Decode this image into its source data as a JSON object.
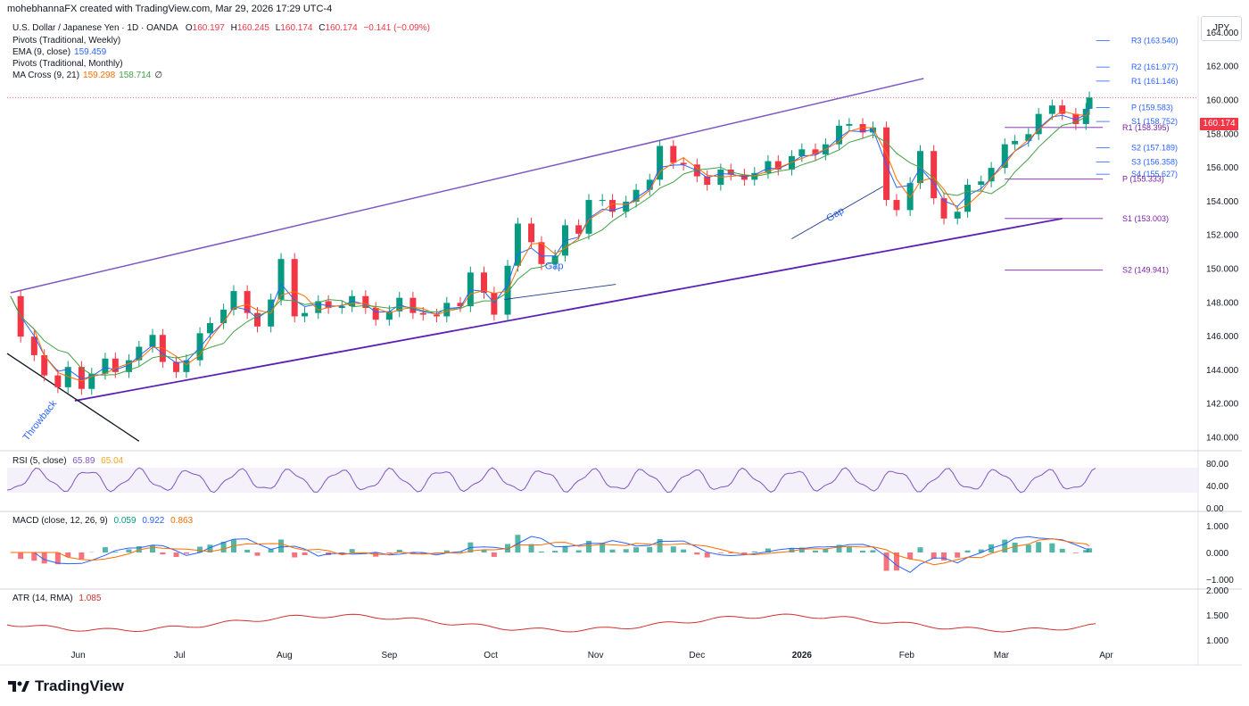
{
  "header": {
    "attribution": "mohebhannaFX created with TradingView.com, Mar 29, 2026 17:29 UTC-4"
  },
  "currency_box": "JPY",
  "legend": {
    "symbol": "U.S. Dollar / Japanese Yen · 1D · OANDA",
    "o_label": "O",
    "o": "160.197",
    "h_label": "H",
    "h": "160.245",
    "l_label": "L",
    "l": "160.174",
    "c_label": "C",
    "c": "160.174",
    "change": "−0.141 (−0.09%)",
    "pivots_weekly": "Pivots (Traditional, Weekly)",
    "ema_label": "EMA (9, close)",
    "ema_value": "159.459",
    "pivots_monthly": "Pivots (Traditional, Monthly)",
    "ma_cross_label": "MA Cross (9, 21)",
    "ma_fast": "159.298",
    "ma_slow": "158.714",
    "ma_extra": "∅"
  },
  "last_price": "160.174",
  "colors": {
    "up": "#089981",
    "down": "#f23645",
    "ema": "#2962ff",
    "ma_fast": "#ff6d00",
    "ma_slow": "#43a047",
    "channel": "#7e57c2",
    "support": "#5b1fb5",
    "weekly_pivot": "#2962ff",
    "monthly_pivot": "#7b1fa2",
    "annotation": "#2962ff",
    "rsi": "#7e57c2",
    "rsi_ma": "#f9a825",
    "macd": "#2962ff",
    "signal": "#ff6d00",
    "atr": "#d32f2f"
  },
  "rsi_pane": {
    "label": "RSI (5, close)",
    "value": "65.89",
    "ma": "65.04",
    "axis": [
      "80.00",
      "40.00",
      "0.00"
    ]
  },
  "macd_pane": {
    "label": "MACD (close, 12, 26, 9)",
    "hist": "0.059",
    "macd": "0.922",
    "signal": "0.863",
    "axis": [
      "1.000",
      "0.000",
      "−1.000"
    ]
  },
  "atr_pane": {
    "label": "ATR (14, RMA)",
    "value": "1.085",
    "axis": [
      "2.000",
      "1.500",
      "1.000"
    ]
  },
  "brand": "TradingView",
  "chart_data": {
    "type": "candlestick",
    "title": "U.S. Dollar / Japanese Yen · 1D · OANDA",
    "ylim": [
      139.5,
      165
    ],
    "yticks": [
      "140.000",
      "142.000",
      "144.000",
      "146.000",
      "148.000",
      "150.000",
      "152.000",
      "154.000",
      "156.000",
      "158.000",
      "160.000",
      "162.000",
      "164.000"
    ],
    "x_axis": {
      "range": [
        "2025-05-11",
        "2026-04-01"
      ],
      "ticks": [
        {
          "date": "2025-06-01",
          "label": "Jun"
        },
        {
          "date": "2025-07-01",
          "label": "Jul"
        },
        {
          "date": "2025-08-01",
          "label": "Aug"
        },
        {
          "date": "2025-09-01",
          "label": "Sep"
        },
        {
          "date": "2025-10-01",
          "label": "Oct"
        },
        {
          "date": "2025-11-01",
          "label": "Nov"
        },
        {
          "date": "2025-12-01",
          "label": "Dec"
        },
        {
          "date": "2026-01-01",
          "label": "2026"
        },
        {
          "date": "2026-02-01",
          "label": "Feb"
        },
        {
          "date": "2026-03-01",
          "label": "Mar"
        },
        {
          "date": "2026-04-01",
          "label": "Apr"
        }
      ]
    },
    "close_series": [
      [
        "2025-05-12",
        148.4
      ],
      [
        "2025-05-15",
        146.0
      ],
      [
        "2025-05-19",
        144.9
      ],
      [
        "2025-05-22",
        143.7
      ],
      [
        "2025-05-26",
        143.0
      ],
      [
        "2025-05-29",
        144.2
      ],
      [
        "2025-06-02",
        142.9
      ],
      [
        "2025-06-05",
        143.8
      ],
      [
        "2025-06-09",
        144.7
      ],
      [
        "2025-06-12",
        143.9
      ],
      [
        "2025-06-16",
        144.6
      ],
      [
        "2025-06-19",
        145.4
      ],
      [
        "2025-06-23",
        146.1
      ],
      [
        "2025-06-26",
        144.5
      ],
      [
        "2025-06-30",
        143.9
      ],
      [
        "2025-07-03",
        144.6
      ],
      [
        "2025-07-07",
        146.2
      ],
      [
        "2025-07-10",
        146.8
      ],
      [
        "2025-07-14",
        147.6
      ],
      [
        "2025-07-17",
        148.7
      ],
      [
        "2025-07-21",
        147.4
      ],
      [
        "2025-07-24",
        146.6
      ],
      [
        "2025-07-28",
        148.2
      ],
      [
        "2025-07-31",
        150.6
      ],
      [
        "2025-08-04",
        147.2
      ],
      [
        "2025-08-07",
        147.4
      ],
      [
        "2025-08-11",
        148.1
      ],
      [
        "2025-08-14",
        147.7
      ],
      [
        "2025-08-18",
        147.8
      ],
      [
        "2025-08-21",
        148.4
      ],
      [
        "2025-08-25",
        147.7
      ],
      [
        "2025-08-28",
        147.0
      ],
      [
        "2025-09-01",
        147.5
      ],
      [
        "2025-09-04",
        148.3
      ],
      [
        "2025-09-08",
        147.4
      ],
      [
        "2025-09-11",
        147.3
      ],
      [
        "2025-09-15",
        147.2
      ],
      [
        "2025-09-18",
        148.0
      ],
      [
        "2025-09-22",
        147.8
      ],
      [
        "2025-09-25",
        149.8
      ],
      [
        "2025-09-29",
        148.6
      ],
      [
        "2025-10-02",
        147.3
      ],
      [
        "2025-10-06",
        150.2
      ],
      [
        "2025-10-09",
        152.7
      ],
      [
        "2025-10-13",
        151.6
      ],
      [
        "2025-10-16",
        150.3
      ],
      [
        "2025-10-20",
        150.8
      ],
      [
        "2025-10-23",
        152.6
      ],
      [
        "2025-10-27",
        152.1
      ],
      [
        "2025-10-30",
        154.1
      ],
      [
        "2025-11-03",
        154.1
      ],
      [
        "2025-11-06",
        153.4
      ],
      [
        "2025-11-10",
        154.0
      ],
      [
        "2025-11-13",
        154.7
      ],
      [
        "2025-11-17",
        155.3
      ],
      [
        "2025-11-20",
        157.3
      ],
      [
        "2025-11-24",
        156.3
      ],
      [
        "2025-11-27",
        156.2
      ],
      [
        "2025-12-01",
        155.5
      ],
      [
        "2025-12-04",
        155.0
      ],
      [
        "2025-12-08",
        155.9
      ],
      [
        "2025-12-11",
        155.6
      ],
      [
        "2025-12-15",
        155.3
      ],
      [
        "2025-12-18",
        155.7
      ],
      [
        "2025-12-22",
        156.4
      ],
      [
        "2025-12-25",
        155.9
      ],
      [
        "2025-12-29",
        156.7
      ],
      [
        "2026-01-01",
        157.1
      ],
      [
        "2026-01-05",
        156.8
      ],
      [
        "2026-01-08",
        157.4
      ],
      [
        "2026-01-12",
        158.5
      ],
      [
        "2026-01-15",
        158.6
      ],
      [
        "2026-01-19",
        158.1
      ],
      [
        "2026-01-22",
        158.4
      ],
      [
        "2026-01-26",
        154.1
      ],
      [
        "2026-01-29",
        153.5
      ],
      [
        "2026-02-02",
        155.1
      ],
      [
        "2026-02-05",
        157.0
      ],
      [
        "2026-02-09",
        154.2
      ],
      [
        "2026-02-12",
        153.0
      ],
      [
        "2026-02-16",
        153.4
      ],
      [
        "2026-02-19",
        155.0
      ],
      [
        "2026-02-23",
        155.2
      ],
      [
        "2026-02-26",
        156.0
      ],
      [
        "2026-03-02",
        157.4
      ],
      [
        "2026-03-05",
        157.6
      ],
      [
        "2026-03-09",
        158.0
      ],
      [
        "2026-03-12",
        159.2
      ],
      [
        "2026-03-16",
        159.7
      ],
      [
        "2026-03-19",
        159.2
      ],
      [
        "2026-03-23",
        158.6
      ],
      [
        "2026-03-26",
        159.5
      ],
      [
        "2026-03-27",
        160.174
      ]
    ],
    "weekly_pivots": [
      {
        "label": "R3",
        "value": 163.54
      },
      {
        "label": "R2",
        "value": 161.977
      },
      {
        "label": "R1",
        "value": 161.146
      },
      {
        "label": "P",
        "value": 159.583
      },
      {
        "label": "S1",
        "value": 158.752
      },
      {
        "label": "S2",
        "value": 157.189
      },
      {
        "label": "S3",
        "value": 156.358
      },
      {
        "label": "S4",
        "value": 155.627
      }
    ],
    "monthly_pivots": [
      {
        "label": "R1",
        "value": 158.395
      },
      {
        "label": "P",
        "value": 155.333
      },
      {
        "label": "S1",
        "value": 153.003
      },
      {
        "label": "S2",
        "value": 149.941
      }
    ],
    "annotations": [
      "Gap",
      "Gap",
      "Throwback"
    ]
  }
}
